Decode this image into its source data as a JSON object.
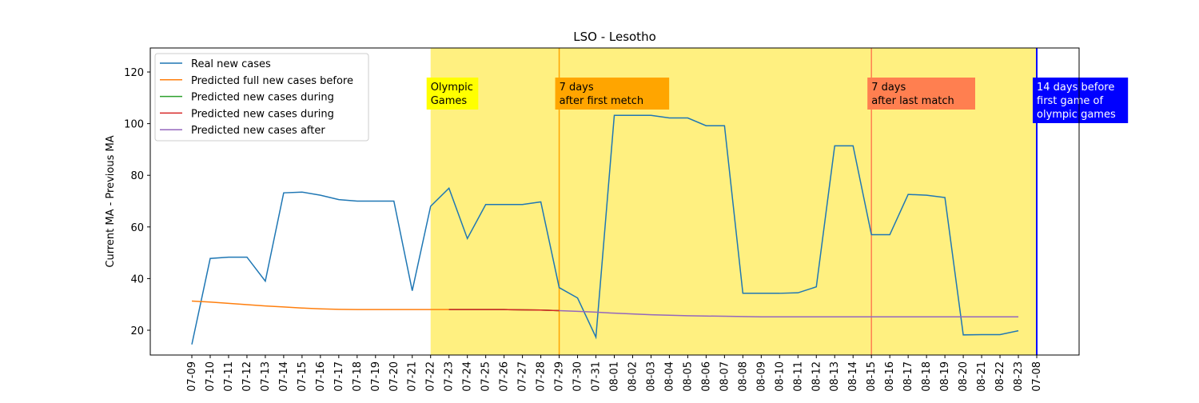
{
  "chart_data": {
    "type": "line",
    "title": "LSO - Lesotho",
    "y_label": "Current MA - Previous MA",
    "categories": [
      "07-09",
      "07-10",
      "07-11",
      "07-12",
      "07-13",
      "07-14",
      "07-15",
      "07-16",
      "07-17",
      "07-18",
      "07-19",
      "07-20",
      "07-21",
      "07-22",
      "07-23",
      "07-24",
      "07-25",
      "07-26",
      "07-27",
      "07-28",
      "07-29",
      "07-30",
      "07-31",
      "08-01",
      "08-02",
      "08-03",
      "08-04",
      "08-05",
      "08-06",
      "08-07",
      "08-08",
      "08-09",
      "08-10",
      "08-11",
      "08-12",
      "08-13",
      "08-14",
      "08-15",
      "08-16",
      "08-17",
      "08-18",
      "08-19",
      "08-20",
      "08-21",
      "08-22",
      "08-23",
      "07-08"
    ],
    "ylim": [
      10.4,
      129.3
    ],
    "yticks": [
      20,
      40,
      60,
      80,
      100,
      120
    ],
    "legend": "upper left",
    "series": [
      {
        "name": "Real new cases",
        "color": "#1f77b4",
        "values": [
          14.5,
          47.8,
          48.3,
          48.3,
          39,
          73.2,
          73.5,
          72.3,
          70.6,
          70,
          70,
          70,
          35.3,
          68,
          75,
          55.5,
          68.7,
          68.7,
          68.7,
          69.7,
          36.5,
          32.5,
          17.3,
          103.2,
          103.2,
          103.2,
          102.2,
          102.2,
          99.2,
          99.2,
          34.3,
          34.3,
          34.3,
          34.5,
          36.8,
          91.4,
          91.4,
          57,
          57,
          72.6,
          72.3,
          71.4,
          18.2,
          18.3,
          18.3,
          19.8,
          null
        ]
      },
      {
        "name": "Predicted full new cases before",
        "color": "#ff7f0e",
        "values": [
          31.3,
          30.9,
          30.4,
          29.9,
          29.4,
          29.0,
          28.6,
          28.3,
          28.1,
          28.0,
          28.0,
          28.0,
          28.0,
          28.0,
          28.0,
          28.0,
          28.0,
          28.0,
          27.9,
          27.8,
          27.6,
          null,
          null,
          null,
          null,
          null,
          null,
          null,
          null,
          null,
          null,
          null,
          null,
          null,
          null,
          null,
          null,
          null,
          null,
          null,
          null,
          null,
          null,
          null,
          null,
          null,
          null
        ]
      },
      {
        "name": "Predicted new cases during",
        "color": "#2ca02c",
        "values": [
          null,
          null,
          null,
          null,
          null,
          null,
          null,
          null,
          null,
          null,
          null,
          null,
          null,
          null,
          28.0,
          28.0,
          28.0,
          28.0,
          27.9,
          27.8,
          27.6,
          null,
          null,
          null,
          null,
          null,
          null,
          null,
          null,
          null,
          null,
          null,
          null,
          null,
          null,
          null,
          null,
          null,
          null,
          null,
          null,
          null,
          null,
          null,
          null,
          null,
          null
        ]
      },
      {
        "name": "Predicted new cases during",
        "color": "#d62728",
        "values": [
          null,
          null,
          null,
          null,
          null,
          null,
          null,
          null,
          null,
          null,
          null,
          null,
          null,
          null,
          28.0,
          28.0,
          28.0,
          28.0,
          27.9,
          27.8,
          27.6,
          null,
          null,
          null,
          null,
          null,
          null,
          null,
          null,
          null,
          null,
          null,
          null,
          null,
          null,
          null,
          null,
          null,
          null,
          null,
          null,
          null,
          null,
          null,
          null,
          null,
          null
        ]
      },
      {
        "name": "Predicted new cases after",
        "color": "#9467bd",
        "values": [
          null,
          null,
          null,
          null,
          null,
          null,
          null,
          null,
          null,
          null,
          null,
          null,
          null,
          null,
          null,
          null,
          null,
          null,
          null,
          null,
          27.6,
          27.3,
          27.0,
          26.6,
          26.3,
          26.0,
          25.8,
          25.6,
          25.5,
          25.4,
          25.3,
          25.2,
          25.2,
          25.2,
          25.2,
          25.2,
          25.2,
          25.2,
          25.2,
          25.2,
          25.2,
          25.2,
          25.2,
          25.2,
          25.2,
          25.2,
          null
        ]
      }
    ],
    "span": {
      "from": "07-22",
      "to": "07-08",
      "color": "#fff080",
      "label": [
        "Olympic",
        "Games"
      ],
      "label_color": "#ffff00",
      "label_text_color": "#000000"
    },
    "vlines": [
      {
        "x": "07-29",
        "color": "#ffa500",
        "label": [
          "7 days",
          "after first metch"
        ],
        "label_color": "#ffa500",
        "label_text_color": "#000000"
      },
      {
        "x": "08-15",
        "color": "#ff7f50",
        "label": [
          "7 days",
          "after last match"
        ],
        "label_color": "#ff7f50",
        "label_text_color": "#000000"
      },
      {
        "x": "07-08",
        "color": "#0000ff",
        "label": [
          "14 days before",
          "first game of",
          "olympic games"
        ],
        "label_color": "#0000ff",
        "label_text_color": "#ffffff"
      }
    ]
  }
}
